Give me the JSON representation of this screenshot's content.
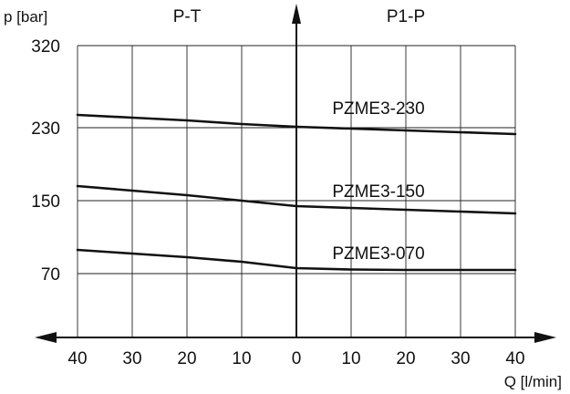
{
  "chart_data": {
    "type": "line",
    "ylabel": "p [bar]",
    "xlabel": "Q [l/min]",
    "regions": [
      {
        "label": "P-T"
      },
      {
        "label": "P1-P"
      }
    ],
    "x_ticks": [
      {
        "value": -40,
        "label": "40"
      },
      {
        "value": -30,
        "label": "30"
      },
      {
        "value": -20,
        "label": "20"
      },
      {
        "value": -10,
        "label": "10"
      },
      {
        "value": 0,
        "label": "0"
      },
      {
        "value": 10,
        "label": "10"
      },
      {
        "value": 20,
        "label": "20"
      },
      {
        "value": 30,
        "label": "30"
      },
      {
        "value": 40,
        "label": "40"
      }
    ],
    "y_ticks": [
      {
        "value": 70,
        "label": "70"
      },
      {
        "value": 150,
        "label": "150"
      },
      {
        "value": 230,
        "label": "230"
      },
      {
        "value": 320,
        "label": "320"
      }
    ],
    "xlim": [
      -40,
      40
    ],
    "ylim": [
      0,
      320
    ],
    "grid": true,
    "series": [
      {
        "name": "PZME3-230",
        "x": [
          -40,
          -30,
          -20,
          -10,
          0,
          10,
          20,
          30,
          40
        ],
        "values": [
          244,
          241,
          238,
          234,
          231,
          229,
          227,
          225,
          223
        ]
      },
      {
        "name": "PZME3-150",
        "x": [
          -40,
          -30,
          -20,
          -10,
          0,
          10,
          20,
          30,
          40
        ],
        "values": [
          166,
          161,
          156,
          150,
          144,
          142,
          140,
          138,
          136
        ]
      },
      {
        "name": "PZME3-070",
        "x": [
          -40,
          -30,
          -20,
          -10,
          0,
          10,
          20,
          30,
          40
        ],
        "values": [
          96,
          92,
          88,
          83,
          76,
          74.5,
          74,
          74,
          74
        ]
      }
    ]
  }
}
